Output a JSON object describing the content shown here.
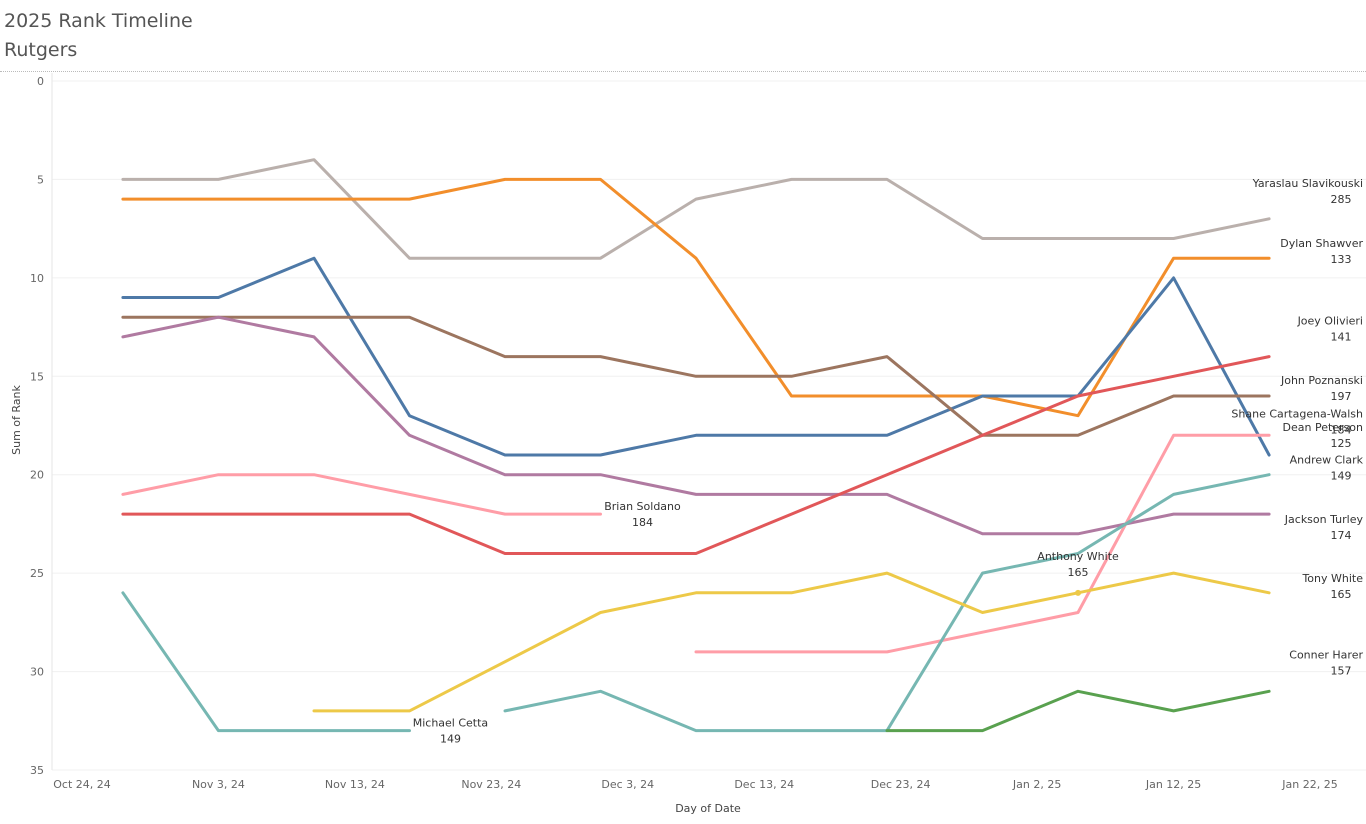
{
  "header": {
    "title": "2025 Rank Timeline",
    "subtitle": "Rutgers"
  },
  "chart_data": {
    "type": "line",
    "title": "2025 Rank Timeline",
    "subtitle": "Rutgers",
    "xlabel": "Day of Date",
    "ylabel": "Sum of Rank",
    "y_reversed": true,
    "ylim": [
      0,
      35
    ],
    "xlim": [
      "2024-10-24",
      "2025-01-23"
    ],
    "x_ticks": [
      "2024-10-24",
      "2024-11-03",
      "2024-11-13",
      "2024-11-23",
      "2024-12-03",
      "2024-12-13",
      "2024-12-23",
      "2025-01-02",
      "2025-01-12",
      "2025-01-22"
    ],
    "x_tick_labels": [
      "Oct 24, 24",
      "Nov 3, 24",
      "Nov 13, 24",
      "Nov 23, 24",
      "Dec 3, 24",
      "Dec 13, 24",
      "Dec 23, 24",
      "Jan 2, 25",
      "Jan 12, 25",
      "Jan 22, 25"
    ],
    "y_ticks": [
      0,
      5,
      10,
      15,
      20,
      25,
      30,
      35
    ],
    "grid": "horizontal",
    "series": [
      {
        "name": "Yaraslau Slavikouski",
        "color": "#bab0ac",
        "label_value": "285",
        "points": [
          [
            "2024-10-27",
            5
          ],
          [
            "2024-11-03",
            5
          ],
          [
            "2024-11-10",
            4
          ],
          [
            "2024-11-17",
            9
          ],
          [
            "2024-11-24",
            9
          ],
          [
            "2024-12-01",
            9
          ],
          [
            "2024-12-08",
            6
          ],
          [
            "2024-12-15",
            5
          ],
          [
            "2024-12-22",
            5
          ],
          [
            "2024-12-29",
            8
          ],
          [
            "2025-01-05",
            8
          ],
          [
            "2025-01-12",
            8
          ],
          [
            "2025-01-19",
            7
          ]
        ]
      },
      {
        "name": "Dylan Shawver",
        "color": "#f28e2b",
        "label_value": "133",
        "points": [
          [
            "2024-10-27",
            6
          ],
          [
            "2024-11-03",
            6
          ],
          [
            "2024-11-10",
            6
          ],
          [
            "2024-11-17",
            6
          ],
          [
            "2024-11-24",
            5
          ],
          [
            "2024-12-01",
            5
          ],
          [
            "2024-12-08",
            9
          ],
          [
            "2024-12-15",
            16
          ],
          [
            "2024-12-22",
            16
          ],
          [
            "2024-12-29",
            16
          ],
          [
            "2025-01-05",
            17
          ],
          [
            "2025-01-12",
            9
          ],
          [
            "2025-01-19",
            9
          ]
        ]
      },
      {
        "name": "",
        "color": "#4e79a7",
        "label_value": "",
        "points": [
          [
            "2024-10-27",
            11
          ],
          [
            "2024-11-03",
            11
          ],
          [
            "2024-11-10",
            9
          ],
          [
            "2024-11-17",
            17
          ],
          [
            "2024-11-24",
            19
          ],
          [
            "2024-12-01",
            19
          ],
          [
            "2024-12-08",
            18
          ],
          [
            "2024-12-15",
            18
          ],
          [
            "2024-12-22",
            18
          ],
          [
            "2024-12-29",
            16
          ],
          [
            "2025-01-05",
            16
          ],
          [
            "2025-01-12",
            10
          ],
          [
            "2025-01-19",
            19
          ]
        ]
      },
      {
        "name": "John Poznanski",
        "color": "#9c755f",
        "label_value": "197",
        "points": [
          [
            "2024-10-27",
            12
          ],
          [
            "2024-11-03",
            12
          ],
          [
            "2024-11-10",
            12
          ],
          [
            "2024-11-17",
            12
          ],
          [
            "2024-11-24",
            14
          ],
          [
            "2024-12-01",
            14
          ],
          [
            "2024-12-08",
            15
          ],
          [
            "2024-12-15",
            15
          ],
          [
            "2024-12-22",
            14
          ],
          [
            "2024-12-29",
            18
          ],
          [
            "2025-01-05",
            18
          ],
          [
            "2025-01-12",
            16
          ],
          [
            "2025-01-19",
            16
          ]
        ]
      },
      {
        "name": "Jackson Turley",
        "color": "#b07aa1",
        "label_value": "174",
        "points": [
          [
            "2024-10-27",
            13
          ],
          [
            "2024-11-03",
            12
          ],
          [
            "2024-11-10",
            13
          ],
          [
            "2024-11-17",
            18
          ],
          [
            "2024-11-24",
            20
          ],
          [
            "2024-12-01",
            20
          ],
          [
            "2024-12-08",
            21
          ],
          [
            "2024-12-15",
            21
          ],
          [
            "2024-12-22",
            21
          ],
          [
            "2024-12-29",
            23
          ],
          [
            "2025-01-05",
            23
          ],
          [
            "2025-01-12",
            22
          ],
          [
            "2025-01-19",
            22
          ]
        ]
      },
      {
        "name": "Brian Soldano",
        "color": "#ff9da7",
        "label_value": "184",
        "points": [
          [
            "2024-10-27",
            21
          ],
          [
            "2024-11-03",
            20
          ],
          [
            "2024-11-10",
            20
          ],
          [
            "2024-11-17",
            21
          ],
          [
            "2024-11-24",
            22
          ],
          [
            "2024-12-01",
            22
          ]
        ]
      },
      {
        "name": "Shane Cartagena-Walsh",
        "color": "#ff9da7",
        "label_value": "184",
        "points": [
          [
            "2024-12-08",
            29
          ],
          [
            "2024-12-15",
            29
          ],
          [
            "2024-12-22",
            29
          ],
          [
            "2024-12-29",
            28
          ],
          [
            "2025-01-05",
            27
          ],
          [
            "2025-01-12",
            18
          ],
          [
            "2025-01-19",
            18
          ]
        ]
      },
      {
        "name": "Joey Olivieri",
        "color": "#e15759",
        "label_value": "141",
        "points": [
          [
            "2024-10-27",
            22
          ],
          [
            "2024-11-03",
            22
          ],
          [
            "2024-11-10",
            22
          ],
          [
            "2024-11-17",
            22
          ],
          [
            "2024-11-24",
            24
          ],
          [
            "2024-12-01",
            24
          ],
          [
            "2024-12-08",
            24
          ],
          [
            "2024-12-15",
            22
          ],
          [
            "2024-12-22",
            20
          ],
          [
            "2024-12-29",
            18
          ],
          [
            "2025-01-05",
            16
          ],
          [
            "2025-01-12",
            15
          ],
          [
            "2025-01-19",
            14
          ]
        ]
      },
      {
        "name": "Michael Cetta",
        "color": "#76b7b2",
        "label_value": "149",
        "points": [
          [
            "2024-10-27",
            26
          ],
          [
            "2024-11-03",
            33
          ],
          [
            "2024-11-10",
            33
          ],
          [
            "2024-11-17",
            33
          ]
        ]
      },
      {
        "name": "Andrew Clark",
        "color": "#76b7b2",
        "label_value": "149",
        "points": [
          [
            "2024-11-24",
            32
          ],
          [
            "2024-12-01",
            31
          ],
          [
            "2024-12-08",
            33
          ],
          [
            "2024-12-15",
            33
          ],
          [
            "2024-12-22",
            33
          ],
          [
            "2024-12-29",
            25
          ],
          [
            "2025-01-05",
            24
          ],
          [
            "2025-01-12",
            21
          ],
          [
            "2025-01-19",
            20
          ]
        ]
      },
      {
        "name": "Tony White",
        "color": "#edc948",
        "label_value": "165",
        "points": [
          [
            "2024-11-10",
            32
          ],
          [
            "2024-11-17",
            32
          ],
          [
            "2024-12-01",
            27
          ],
          [
            "2024-12-08",
            26
          ],
          [
            "2024-12-15",
            26
          ],
          [
            "2024-12-22",
            25
          ],
          [
            "2024-12-29",
            27
          ],
          [
            "2025-01-05",
            26
          ],
          [
            "2025-01-12",
            25
          ],
          [
            "2025-01-19",
            26
          ]
        ]
      },
      {
        "name": "Conner Harer",
        "color": "#59a14f",
        "label_value": "157",
        "points": [
          [
            "2024-12-22",
            33
          ],
          [
            "2024-12-29",
            33
          ],
          [
            "2025-01-05",
            31
          ],
          [
            "2025-01-12",
            32
          ],
          [
            "2025-01-19",
            31
          ]
        ]
      }
    ],
    "annotations": [
      {
        "name": "Yaraslau Slavikouski",
        "value": "285",
        "date": "2025-01-19",
        "rank": 7
      },
      {
        "name": "Dylan Shawver",
        "value": "133",
        "date": "2025-01-19",
        "rank": 9
      },
      {
        "name": "Joey Olivieri",
        "value": "141",
        "date": "2025-01-19",
        "rank": 14
      },
      {
        "name": "John Poznanski",
        "value": "197",
        "date": "2025-01-19",
        "rank": 16
      },
      {
        "name": "Shane Cartagena-Walsh",
        "value": "184",
        "date": "2025-01-19",
        "rank": 18
      },
      {
        "name": "Dean Peterson",
        "value": "125",
        "date": "2025-01-19",
        "rank": 19
      },
      {
        "name": "Andrew Clark",
        "value": "149",
        "date": "2025-01-19",
        "rank": 20
      },
      {
        "name": "Jackson Turley",
        "value": "174",
        "date": "2025-01-19",
        "rank": 22
      },
      {
        "name": "Tony White",
        "value": "165",
        "date": "2025-01-19",
        "rank": 26
      },
      {
        "name": "Conner Harer",
        "value": "157",
        "date": "2025-01-19",
        "rank": 31
      },
      {
        "name": "Anthony White",
        "value": "165",
        "date": "2025-01-05",
        "rank": 26
      },
      {
        "name": "Brian Soldano",
        "value": "184",
        "date": "2024-12-01",
        "rank": 22
      },
      {
        "name": "Michael Cetta",
        "value": "149",
        "date": "2024-11-17",
        "rank": 33
      }
    ]
  }
}
